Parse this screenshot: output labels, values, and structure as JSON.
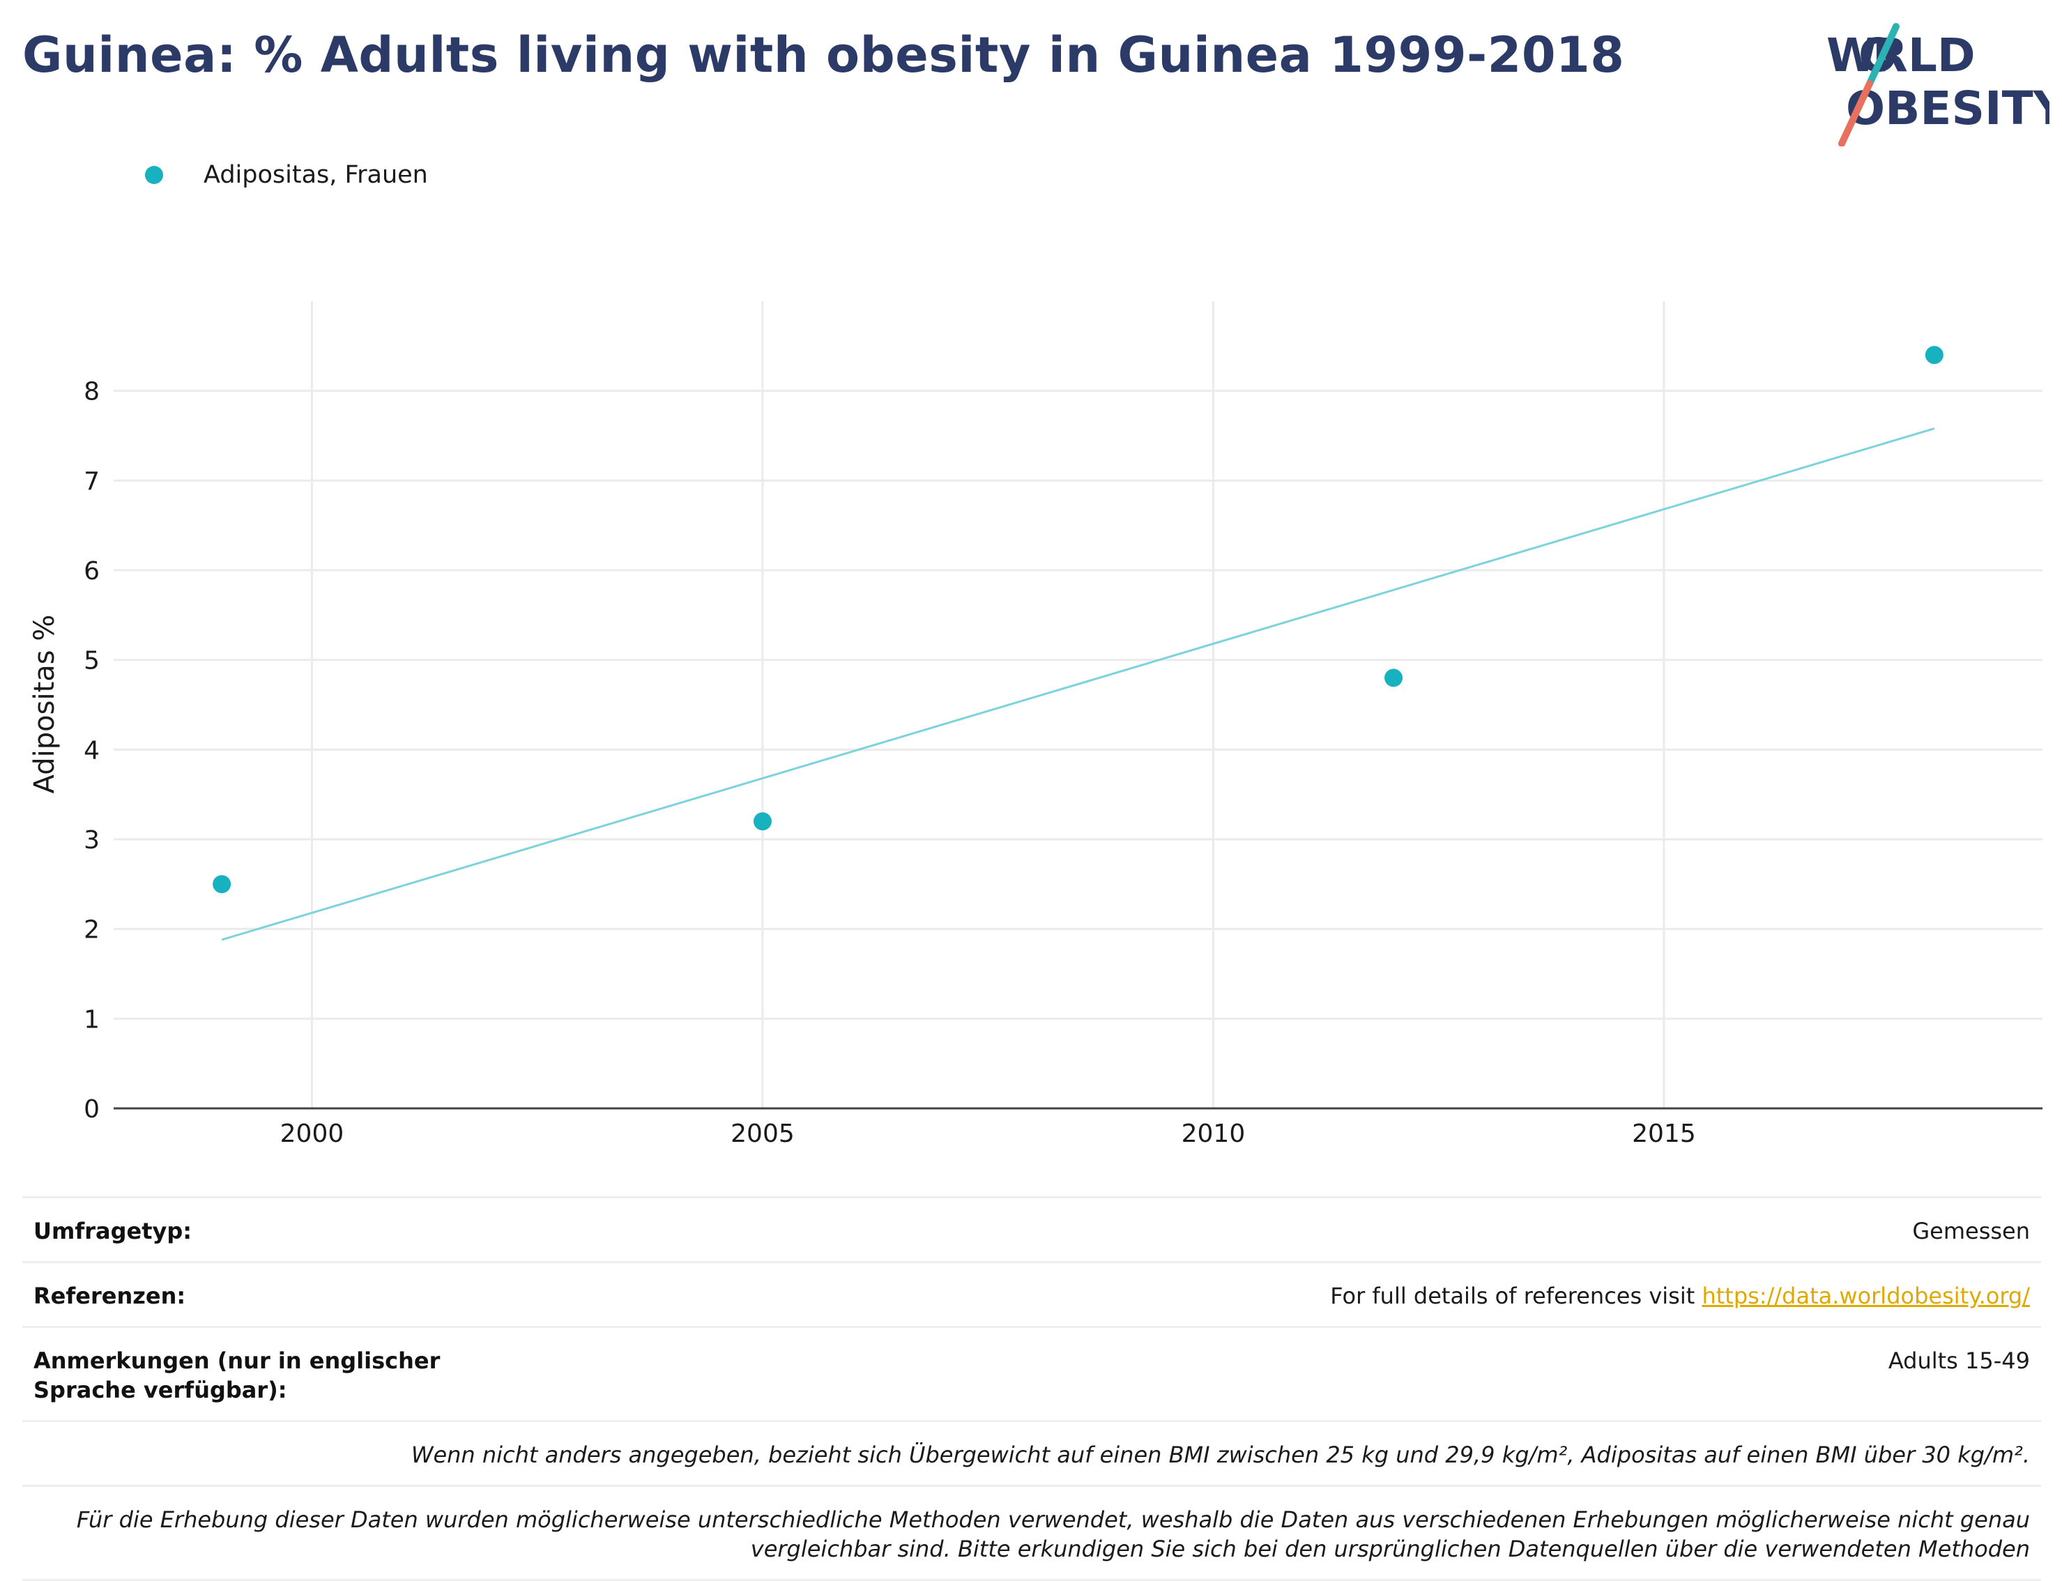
{
  "title": "Guinea: % Adults living with obesity in Guinea 1999-2018",
  "logo": {
    "line1": "WORLD",
    "line2": "OBESITY",
    "colors": {
      "text": "#2b3a67",
      "teal": "#2bb3b3",
      "coral": "#e8705f"
    }
  },
  "legend": {
    "series_label": "Adipositas, Frauen",
    "marker_color": "#17b1bf"
  },
  "chart_data": {
    "type": "scatter",
    "ylabel": "Adipositas %",
    "xlabel": "",
    "xlim": [
      1997.8,
      2019.2
    ],
    "ylim": [
      0,
      9
    ],
    "x_ticks": [
      2000,
      2005,
      2010,
      2015
    ],
    "y_ticks": [
      0,
      1,
      2,
      3,
      4,
      5,
      6,
      7,
      8
    ],
    "grid": true,
    "legend_position": "top-left",
    "series": [
      {
        "name": "Adipositas, Frauen",
        "color": "#17b1bf",
        "points": [
          {
            "x": 1999,
            "y": 2.5
          },
          {
            "x": 2005,
            "y": 3.2
          },
          {
            "x": 2012,
            "y": 4.8
          },
          {
            "x": 2018,
            "y": 8.4
          }
        ]
      }
    ],
    "trendline": {
      "color": "#7dd3db",
      "from": {
        "x": 1999,
        "y": 1.88
      },
      "to": {
        "x": 2018,
        "y": 7.58
      }
    }
  },
  "footer": {
    "survey_type_label": "Umfragetyp:",
    "survey_type_value": "Gemessen",
    "references_label": "Referenzen:",
    "references_text": "For full details of references visit ",
    "references_link": "https://data.worldobesity.org/",
    "notes_label": "Anmerkungen (nur in englischer Sprache verfügbar):",
    "notes_value": "Adults 15-49",
    "definition_note": "Wenn nicht anders angegeben, bezieht sich Übergewicht auf einen BMI zwischen 25 kg und 29,9 kg/m², Adipositas auf einen BMI über 30 kg/m².",
    "methods_note": "Für die Erhebung dieser Daten wurden möglicherweise unterschiedliche Methoden verwendet, weshalb die Daten aus verschiedenen Erhebungen möglicherweise nicht genau vergleichbar sind. Bitte erkundigen Sie sich bei den ursprünglichen Datenquellen über die verwendeten Methoden"
  }
}
